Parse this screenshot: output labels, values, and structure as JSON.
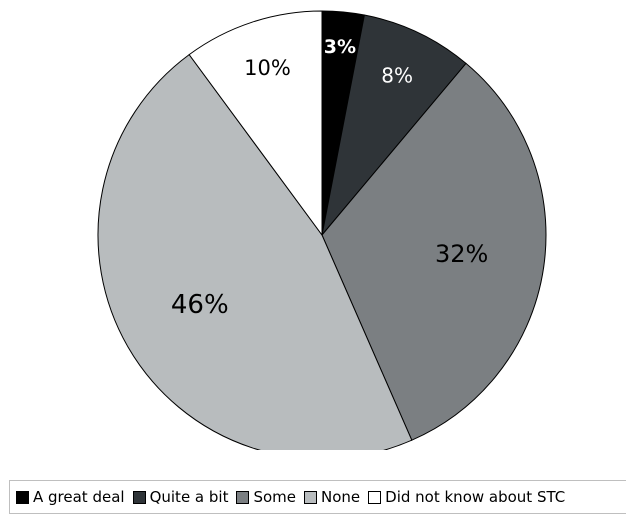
{
  "chart_data": {
    "type": "pie",
    "title": "",
    "start_angle_deg": 0,
    "direction": "clockwise",
    "slices": [
      {
        "label": "A great deal",
        "value": 3,
        "display": "3%",
        "color": "#000000",
        "label_color": "#ffffff",
        "label_bold": true
      },
      {
        "label": "Quite a bit",
        "value": 8,
        "display": "8%",
        "color": "#2f3438",
        "label_color": "#ffffff",
        "label_bold": false
      },
      {
        "label": "Some",
        "value": 32,
        "display": "32%",
        "color": "#7b7f82",
        "label_color": "#000000",
        "label_bold": false
      },
      {
        "label": "None",
        "value": 46,
        "display": "46%",
        "color": "#b8bcbe",
        "label_color": "#000000",
        "label_bold": false
      },
      {
        "label": "Did not know about STC",
        "value": 10,
        "display": "10%",
        "color": "#ffffff",
        "label_color": "#000000",
        "label_bold": false
      }
    ],
    "legend": {
      "position": "bottom",
      "items": [
        "A great deal",
        "Quite a bit",
        "Some",
        "None",
        "Did not know about STC"
      ]
    }
  }
}
